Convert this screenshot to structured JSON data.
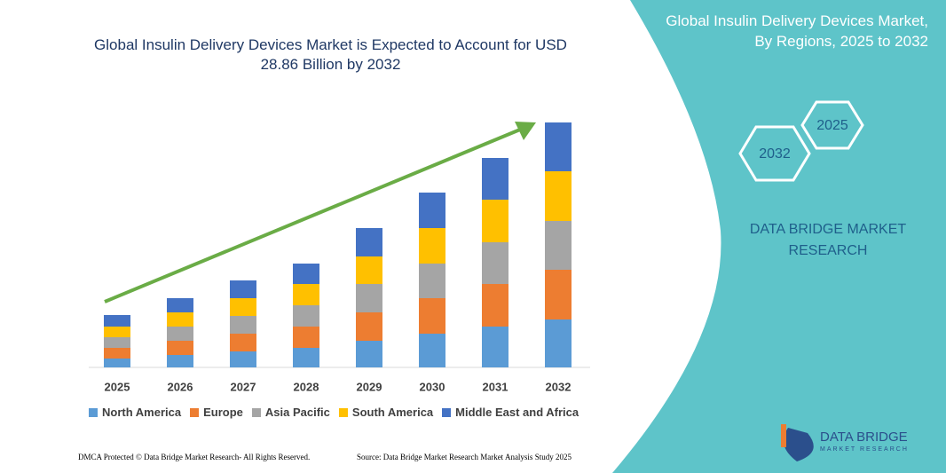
{
  "chart_data": {
    "type": "stacked-bar",
    "title": "Global Insulin Delivery Devices Market is Expected to Account for USD 28.86 Billion by 2032",
    "categories": [
      "2025",
      "2026",
      "2027",
      "2028",
      "2029",
      "2030",
      "2031",
      "2032"
    ],
    "series": [
      {
        "name": "North America",
        "color": "#5b9bd5",
        "values": [
          10,
          14,
          18,
          22,
          30,
          38,
          46,
          54
        ]
      },
      {
        "name": "Europe",
        "color": "#ed7d31",
        "values": [
          12,
          16,
          20,
          24,
          32,
          40,
          48,
          56
        ]
      },
      {
        "name": "Asia Pacific",
        "color": "#a5a5a5",
        "values": [
          12,
          16,
          20,
          24,
          32,
          39,
          47,
          55
        ]
      },
      {
        "name": "South America",
        "color": "#ffc000",
        "values": [
          12,
          16,
          20,
          24,
          31,
          40,
          48,
          56
        ]
      },
      {
        "name": "Middle East and Africa",
        "color": "#4472c4",
        "values": [
          13,
          16,
          20,
          23,
          32,
          40,
          47,
          55
        ]
      }
    ]
  },
  "panel": {
    "title": "Global Insulin Delivery Devices Market, By Regions, 2025 to 2032",
    "hexagons": [
      "2025",
      "2032"
    ],
    "brand": "DATA BRIDGE MARKET RESEARCH"
  },
  "logo": {
    "name": "DATA BRIDGE",
    "tagline": "MARKET RESEARCH"
  },
  "footer": {
    "left": "DMCA Protected © Data Bridge Market Research- All Rights Reserved.",
    "right": "Source: Data Bridge Market Research Market Analysis Study 2025"
  }
}
